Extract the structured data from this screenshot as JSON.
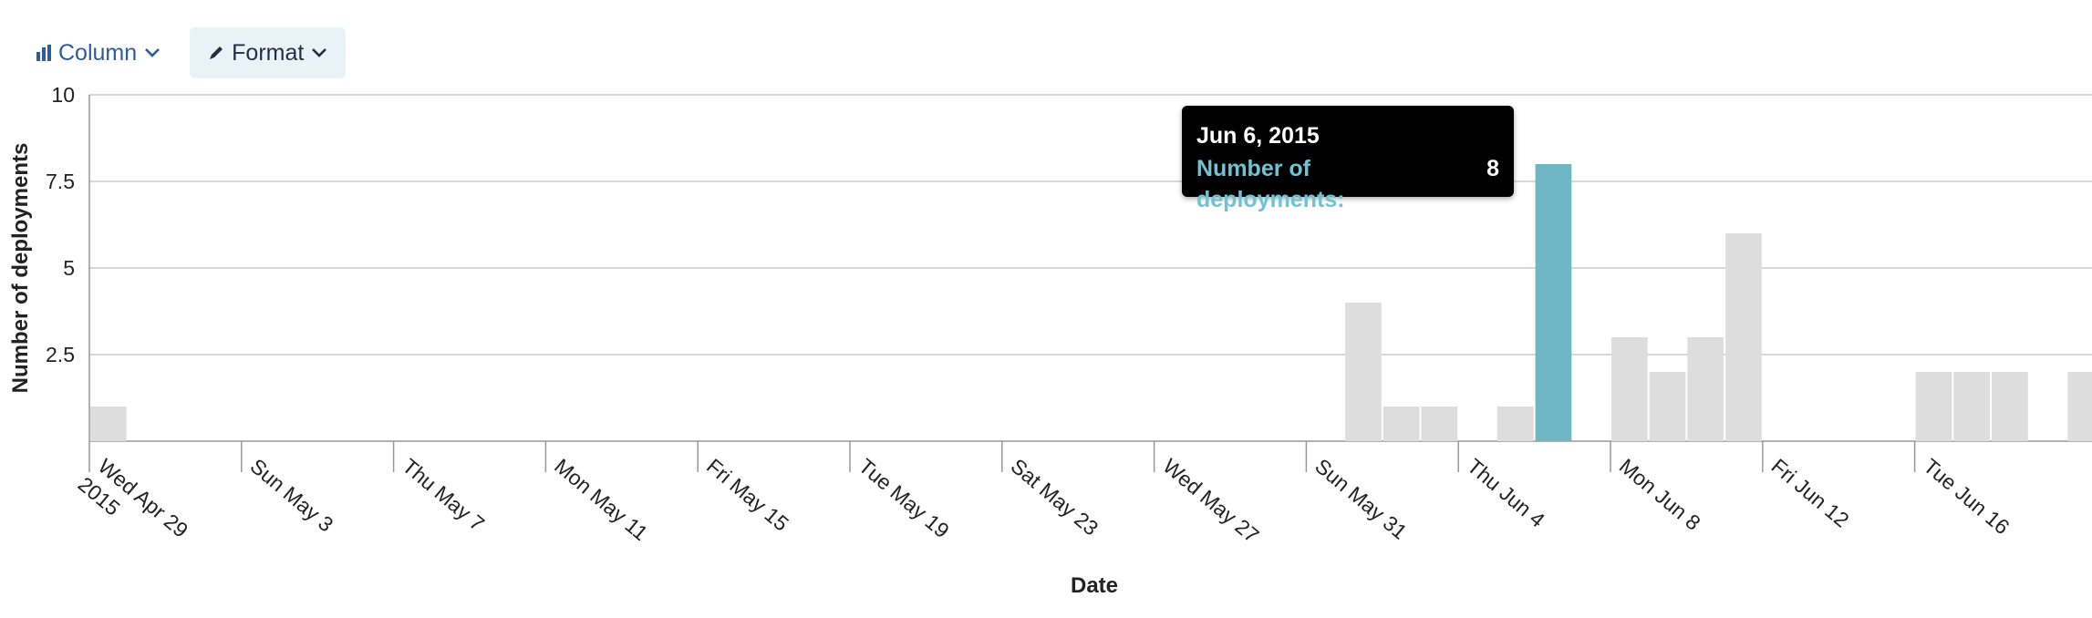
{
  "toolbar": {
    "chart_type_label": "Column",
    "format_label": "Format",
    "icons": [
      "bar-chart-icon",
      "chevron-down-icon",
      "pencil-icon"
    ]
  },
  "colors": {
    "bar": "#dddddd",
    "highlight": "#6fb7c5",
    "grid": "#cccccc",
    "tooltip_bg": "#000000",
    "tooltip_label": "#6fc3d3",
    "accent": "#2e5b9a"
  },
  "tooltip": {
    "date": "Jun 6, 2015",
    "label": "Number of deployments:",
    "value": "8"
  },
  "chart_data": {
    "type": "bar",
    "xlabel": "Date",
    "ylabel": "Number of deployments",
    "ylim": [
      0,
      10
    ],
    "yticks": [
      2.5,
      5,
      7.5,
      10
    ],
    "ytick_labels": [
      "2.5",
      "5",
      "7.5",
      "10"
    ],
    "grid": true,
    "x_start": "2015-04-29",
    "x_ticks": [
      {
        "date": "2015-04-29",
        "label": "Wed Apr 29",
        "sublabel": "2015"
      },
      {
        "date": "2015-05-03",
        "label": "Sun May 3"
      },
      {
        "date": "2015-05-07",
        "label": "Thu May 7"
      },
      {
        "date": "2015-05-11",
        "label": "Mon May 11"
      },
      {
        "date": "2015-05-15",
        "label": "Fri May 15"
      },
      {
        "date": "2015-05-19",
        "label": "Tue May 19"
      },
      {
        "date": "2015-05-23",
        "label": "Sat May 23"
      },
      {
        "date": "2015-05-27",
        "label": "Wed May 27"
      },
      {
        "date": "2015-05-31",
        "label": "Sun May 31"
      },
      {
        "date": "2015-06-04",
        "label": "Thu Jun 4"
      },
      {
        "date": "2015-06-08",
        "label": "Mon Jun 8"
      },
      {
        "date": "2015-06-12",
        "label": "Fri Jun 12"
      },
      {
        "date": "2015-06-16",
        "label": "Tue Jun 16"
      }
    ],
    "series": [
      {
        "points": [
          {
            "date": "2015-04-29",
            "value": 1
          },
          {
            "date": "2015-06-01",
            "value": 4
          },
          {
            "date": "2015-06-02",
            "value": 1
          },
          {
            "date": "2015-06-03",
            "value": 1
          },
          {
            "date": "2015-06-05",
            "value": 1
          },
          {
            "date": "2015-06-06",
            "value": 8,
            "highlighted": true
          },
          {
            "date": "2015-06-08",
            "value": 3
          },
          {
            "date": "2015-06-09",
            "value": 2
          },
          {
            "date": "2015-06-10",
            "value": 3
          },
          {
            "date": "2015-06-11",
            "value": 6
          },
          {
            "date": "2015-06-16",
            "value": 2
          },
          {
            "date": "2015-06-17",
            "value": 2
          },
          {
            "date": "2015-06-18",
            "value": 2
          },
          {
            "date": "2015-06-20",
            "value": 2
          }
        ]
      }
    ]
  }
}
